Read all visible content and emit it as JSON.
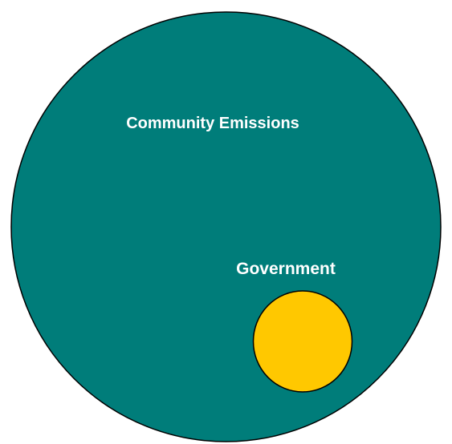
{
  "diagram": {
    "outer": {
      "label": "Community Emissions",
      "fill_color": "#007D7A",
      "stroke_color": "#000000"
    },
    "inner": {
      "label": "Government",
      "fill_color": "#FFC800",
      "stroke_color": "#000000"
    }
  }
}
